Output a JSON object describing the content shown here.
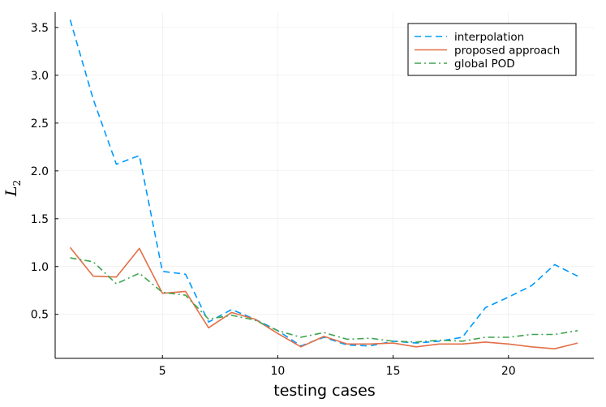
{
  "chart_data": {
    "type": "line",
    "title": "",
    "xlabel": "testing cases",
    "ylabel_main": "L",
    "ylabel_sub": "2",
    "xlim": [
      0.35,
      23.7
    ],
    "ylim": [
      0.04,
      3.66
    ],
    "xticks": [
      5,
      10,
      15,
      20
    ],
    "xtick_labels": [
      "5",
      "10",
      "15",
      "20"
    ],
    "yticks": [
      0.5,
      1.0,
      1.5,
      2.0,
      2.5,
      3.0,
      3.5
    ],
    "ytick_labels": [
      "0.5",
      "1.0",
      "1.5",
      "2.0",
      "2.5",
      "3.0",
      "3.5"
    ],
    "grid": true,
    "legend_position": "top-right",
    "x": [
      1,
      2,
      3,
      4,
      5,
      6,
      7,
      8,
      9,
      10,
      11,
      12,
      13,
      14,
      15,
      16,
      17,
      18,
      19,
      20,
      21,
      22,
      23
    ],
    "series": [
      {
        "name": "interpolation",
        "color": "#009AFA",
        "dash": "dashed",
        "values": [
          3.58,
          2.75,
          2.07,
          2.16,
          0.95,
          0.92,
          0.42,
          0.55,
          0.45,
          0.33,
          0.17,
          0.26,
          0.18,
          0.17,
          0.22,
          0.2,
          0.22,
          0.26,
          0.57,
          0.68,
          0.8,
          1.02,
          0.9
        ]
      },
      {
        "name": "proposed approach",
        "color": "#E36F47",
        "dash": "solid",
        "values": [
          1.2,
          0.9,
          0.89,
          1.19,
          0.72,
          0.74,
          0.36,
          0.52,
          0.45,
          0.3,
          0.16,
          0.27,
          0.19,
          0.19,
          0.2,
          0.16,
          0.19,
          0.19,
          0.21,
          0.19,
          0.16,
          0.14,
          0.2
        ]
      },
      {
        "name": "global POD",
        "color": "#3EA44E",
        "dash": "dashdot",
        "values": [
          1.09,
          1.05,
          0.82,
          0.93,
          0.73,
          0.7,
          0.45,
          0.49,
          0.44,
          0.33,
          0.26,
          0.31,
          0.24,
          0.25,
          0.22,
          0.21,
          0.23,
          0.22,
          0.26,
          0.26,
          0.29,
          0.29,
          0.33
        ]
      }
    ]
  }
}
